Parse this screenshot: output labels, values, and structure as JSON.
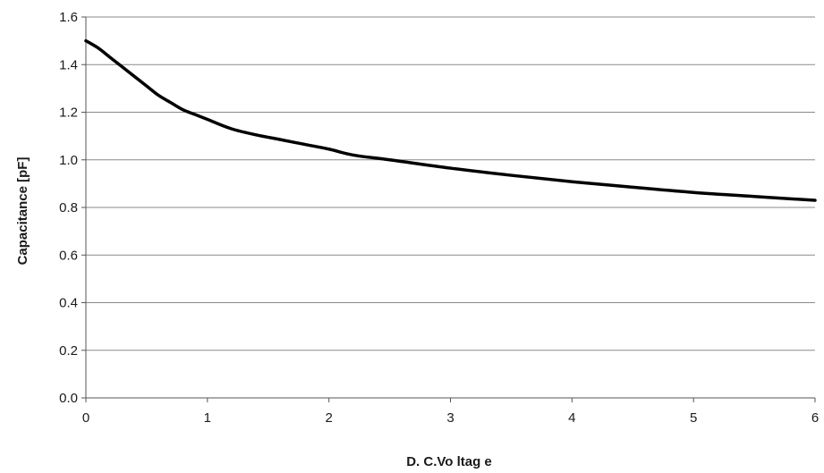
{
  "chart_data": {
    "type": "line",
    "title": "",
    "xlabel": "D. C.Vo ltag e",
    "ylabel": "Capacitance  [pF]",
    "xlim": [
      0,
      6
    ],
    "ylim": [
      0,
      1.6
    ],
    "x_ticks": [
      "0",
      "1",
      "2",
      "3",
      "4",
      "5",
      "6"
    ],
    "y_ticks": [
      "0.0",
      "0.2",
      "0.4",
      "0.6",
      "0.8",
      "1.0",
      "1.2",
      "1.4",
      "1.6"
    ],
    "grid": "horizontal",
    "legend": "none",
    "line_color": "#000000",
    "series": [
      {
        "x": [
          0,
          0.1,
          0.2,
          0.3,
          0.4,
          0.5,
          0.6,
          0.7,
          0.8,
          0.9,
          1.0,
          1.2,
          1.4,
          1.6,
          1.8,
          2.0,
          2.2,
          2.5,
          3.0,
          3.5,
          4.0,
          4.5,
          5.0,
          5.5,
          6.0
        ],
        "y": [
          1.5,
          1.47,
          1.43,
          1.39,
          1.35,
          1.31,
          1.27,
          1.24,
          1.21,
          1.19,
          1.17,
          1.13,
          1.105,
          1.085,
          1.065,
          1.045,
          1.02,
          1.0,
          0.965,
          0.935,
          0.908,
          0.885,
          0.863,
          0.846,
          0.83
        ]
      }
    ]
  }
}
